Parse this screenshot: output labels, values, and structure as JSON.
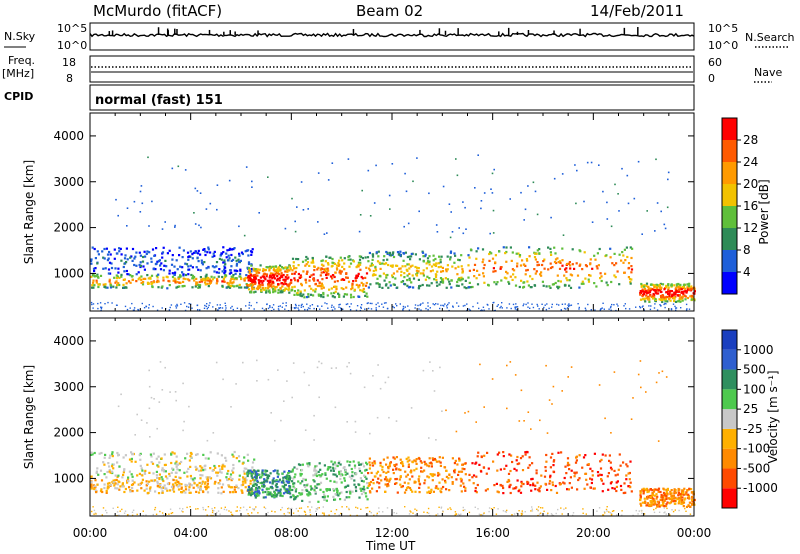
{
  "header": {
    "station": "McMurdo (fitACF)",
    "beam": "Beam 02",
    "date": "14/Feb/2011"
  },
  "left_labels": {
    "nsky": "N.Sky",
    "freq": "Freq.",
    "freq_unit": "[MHz]",
    "cpid": "CPID",
    "nsky_ticks": [
      "10^5",
      "10^0"
    ],
    "freq_ticks": [
      "18",
      "8"
    ]
  },
  "right_labels": {
    "nsearch": "N.Search",
    "nave": "Nave",
    "nsearch_ticks": [
      "10^5",
      "10^0"
    ],
    "nave_ticks": [
      "60",
      "0"
    ]
  },
  "cpid_text": "normal (fast) 151",
  "colors": {
    "power": [
      "#0000ff",
      "#1e5fd9",
      "#2e8b57",
      "#5fbf3a",
      "#f2c200",
      "#ff9a00",
      "#ff5a00",
      "#ff0000"
    ],
    "velocity": [
      "#ff0000",
      "#ff4a00",
      "#ff8a00",
      "#ffb000",
      "#c8c8c8",
      "#4ec94e",
      "#2f8f5f",
      "#2f5fcf",
      "#1a3fbf"
    ]
  },
  "chart_data": [
    {
      "type": "heatmap",
      "title": "Power",
      "xlabel": "Time UT",
      "ylabel": "Slant Range [km]",
      "x_ticks": [
        "00:00",
        "04:00",
        "08:00",
        "12:00",
        "16:00",
        "20:00",
        "00:00"
      ],
      "y_ticks": [
        "1000",
        "2000",
        "3000",
        "4000"
      ],
      "xlim_hours": [
        0,
        24
      ],
      "ylim_km": [
        180,
        4500
      ],
      "colorbar": {
        "label": "Power [dB]",
        "ticks": [
          "4",
          "8",
          "12",
          "16",
          "20",
          "24",
          "28"
        ],
        "range": [
          0,
          30
        ]
      },
      "echo_bands": [
        {
          "t0": 0.0,
          "t1": 6.5,
          "r0": 700,
          "r1": 1000,
          "level": 22
        },
        {
          "t0": 0.0,
          "t1": 6.5,
          "r0": 1000,
          "r1": 1600,
          "level": 6
        },
        {
          "t0": 6.2,
          "t1": 8.0,
          "r0": 600,
          "r1": 1200,
          "level": 30
        },
        {
          "t0": 8.0,
          "t1": 11.0,
          "r0": 500,
          "r1": 1400,
          "level": 26
        },
        {
          "t0": 11.0,
          "t1": 15.0,
          "r0": 700,
          "r1": 1500,
          "level": 18
        },
        {
          "t0": 15.0,
          "t1": 21.5,
          "r0": 700,
          "r1": 1600,
          "level": 24
        },
        {
          "t0": 21.8,
          "t1": 24.0,
          "r0": 400,
          "r1": 800,
          "level": 30
        }
      ]
    },
    {
      "type": "heatmap",
      "title": "Velocity",
      "xlabel": "Time UT",
      "ylabel": "Slant Range [km]",
      "x_ticks": [
        "00:00",
        "04:00",
        "08:00",
        "12:00",
        "16:00",
        "20:00",
        "00:00"
      ],
      "y_ticks": [
        "1000",
        "2000",
        "3000",
        "4000"
      ],
      "xlim_hours": [
        0,
        24
      ],
      "ylim_km": [
        180,
        4500
      ],
      "colorbar": {
        "label": "Velocity [m s⁻¹]",
        "ticks": [
          "1000",
          "500",
          "100",
          "25",
          "-25",
          "-100",
          "-500",
          "-1000"
        ]
      }
    }
  ]
}
